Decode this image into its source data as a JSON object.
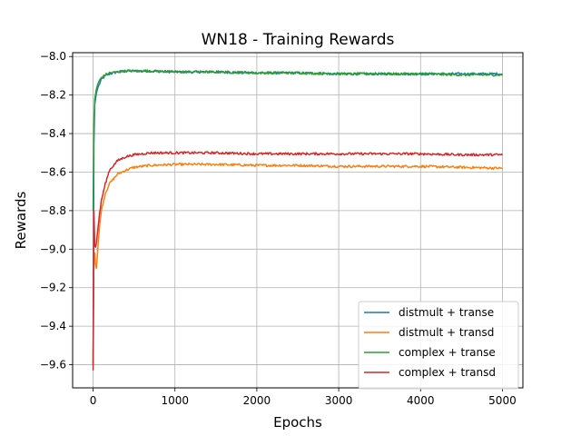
{
  "chart_data": {
    "type": "line",
    "title": "WN18 - Training Rewards",
    "xlabel": "Epochs",
    "ylabel": "Rewards",
    "xlim": [
      -250,
      5250
    ],
    "ylim": [
      -9.72,
      -7.98
    ],
    "xticks": [
      0,
      1000,
      2000,
      3000,
      4000,
      5000
    ],
    "xtick_labels": [
      "0",
      "1000",
      "2000",
      "3000",
      "4000",
      "5000"
    ],
    "yticks": [
      -9.6,
      -9.4,
      -9.2,
      -9.0,
      -8.8,
      -8.6,
      -8.4,
      -8.2,
      -8.0
    ],
    "ytick_labels": [
      "−9.6",
      "−9.4",
      "−9.2",
      "−9.0",
      "−8.8",
      "−8.6",
      "−8.4",
      "−8.2",
      "−8.0"
    ],
    "grid": true,
    "legend_position": "lower-right",
    "series": [
      {
        "name": "distmult + transe",
        "color": "#1f77b4",
        "x": [
          0,
          10,
          20,
          40,
          60,
          100,
          150,
          200,
          300,
          400,
          500,
          700,
          1000,
          1500,
          2000,
          2500,
          3000,
          3500,
          4000,
          4500,
          5000
        ],
        "y": [
          -9.6,
          -8.45,
          -8.25,
          -8.19,
          -8.16,
          -8.12,
          -8.1,
          -8.09,
          -8.08,
          -8.075,
          -8.075,
          -8.075,
          -8.08,
          -8.08,
          -8.085,
          -8.085,
          -8.09,
          -8.09,
          -8.09,
          -8.09,
          -8.09
        ]
      },
      {
        "name": "distmult + transd",
        "color": "#ff7f0e",
        "x": [
          0,
          10,
          20,
          30,
          40,
          50,
          60,
          80,
          100,
          150,
          200,
          300,
          400,
          500,
          700,
          1000,
          1500,
          2000,
          2500,
          3000,
          3500,
          4000,
          4500,
          5000
        ],
        "y": [
          -9.6,
          -9.05,
          -9.02,
          -9.08,
          -9.1,
          -9.05,
          -8.98,
          -8.88,
          -8.8,
          -8.71,
          -8.66,
          -8.61,
          -8.59,
          -8.575,
          -8.565,
          -8.56,
          -8.56,
          -8.565,
          -8.565,
          -8.57,
          -8.57,
          -8.57,
          -8.575,
          -8.58
        ]
      },
      {
        "name": "complex + transe",
        "color": "#2ca02c",
        "x": [
          0,
          10,
          20,
          40,
          60,
          100,
          150,
          200,
          300,
          400,
          500,
          700,
          1000,
          1500,
          2000,
          2500,
          3000,
          3500,
          4000,
          4500,
          5000
        ],
        "y": [
          -8.8,
          -8.35,
          -8.22,
          -8.17,
          -8.14,
          -8.11,
          -8.095,
          -8.085,
          -8.08,
          -8.075,
          -8.075,
          -8.075,
          -8.08,
          -8.08,
          -8.085,
          -8.085,
          -8.09,
          -8.09,
          -8.09,
          -8.095,
          -8.095
        ]
      },
      {
        "name": "complex + transd",
        "color": "#d62728",
        "x": [
          0,
          5,
          10,
          20,
          30,
          40,
          50,
          70,
          100,
          150,
          200,
          300,
          400,
          500,
          700,
          1000,
          1500,
          2000,
          2500,
          3000,
          3500,
          4000,
          4500,
          5000
        ],
        "y": [
          -9.63,
          -9.3,
          -8.8,
          -8.98,
          -8.99,
          -8.97,
          -8.93,
          -8.85,
          -8.75,
          -8.66,
          -8.59,
          -8.54,
          -8.52,
          -8.51,
          -8.5,
          -8.5,
          -8.5,
          -8.505,
          -8.505,
          -8.505,
          -8.505,
          -8.505,
          -8.51,
          -8.51
        ]
      }
    ]
  }
}
